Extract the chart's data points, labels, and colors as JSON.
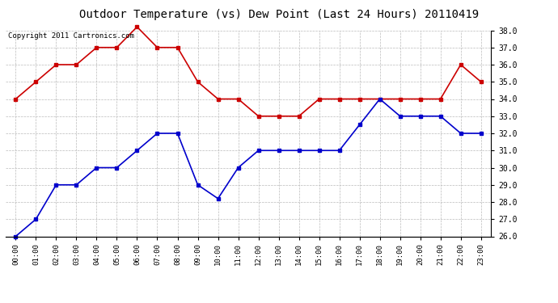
{
  "title": "Outdoor Temperature (vs) Dew Point (Last 24 Hours) 20110419",
  "copyright": "Copyright 2011 Cartronics.com",
  "x_labels": [
    "00:00",
    "01:00",
    "02:00",
    "03:00",
    "04:00",
    "05:00",
    "06:00",
    "07:00",
    "08:00",
    "09:00",
    "10:00",
    "11:00",
    "12:00",
    "13:00",
    "14:00",
    "15:00",
    "16:00",
    "17:00",
    "18:00",
    "19:00",
    "20:00",
    "21:00",
    "22:00",
    "23:00"
  ],
  "temp_data": [
    34.0,
    35.0,
    36.0,
    36.0,
    37.0,
    37.0,
    38.2,
    37.0,
    37.0,
    35.0,
    34.0,
    34.0,
    33.0,
    33.0,
    33.0,
    34.0,
    34.0,
    34.0,
    34.0,
    34.0,
    34.0,
    34.0,
    36.0,
    35.0
  ],
  "dew_data": [
    26.0,
    27.0,
    29.0,
    29.0,
    30.0,
    30.0,
    31.0,
    32.0,
    32.0,
    29.0,
    28.2,
    30.0,
    31.0,
    31.0,
    31.0,
    31.0,
    31.0,
    32.5,
    34.0,
    33.0,
    33.0,
    33.0,
    32.0,
    32.0
  ],
  "temp_color": "#cc0000",
  "dew_color": "#0000cc",
  "bg_color": "#ffffff",
  "plot_bg_color": "#ffffff",
  "grid_color": "#bbbbbb",
  "ylim": [
    26.0,
    38.0
  ],
  "yticks": [
    26.0,
    27.0,
    28.0,
    29.0,
    30.0,
    31.0,
    32.0,
    33.0,
    34.0,
    35.0,
    36.0,
    37.0,
    38.0
  ],
  "title_fontsize": 10,
  "copyright_fontsize": 6.5,
  "marker": "s",
  "marker_size": 3,
  "linewidth": 1.2
}
